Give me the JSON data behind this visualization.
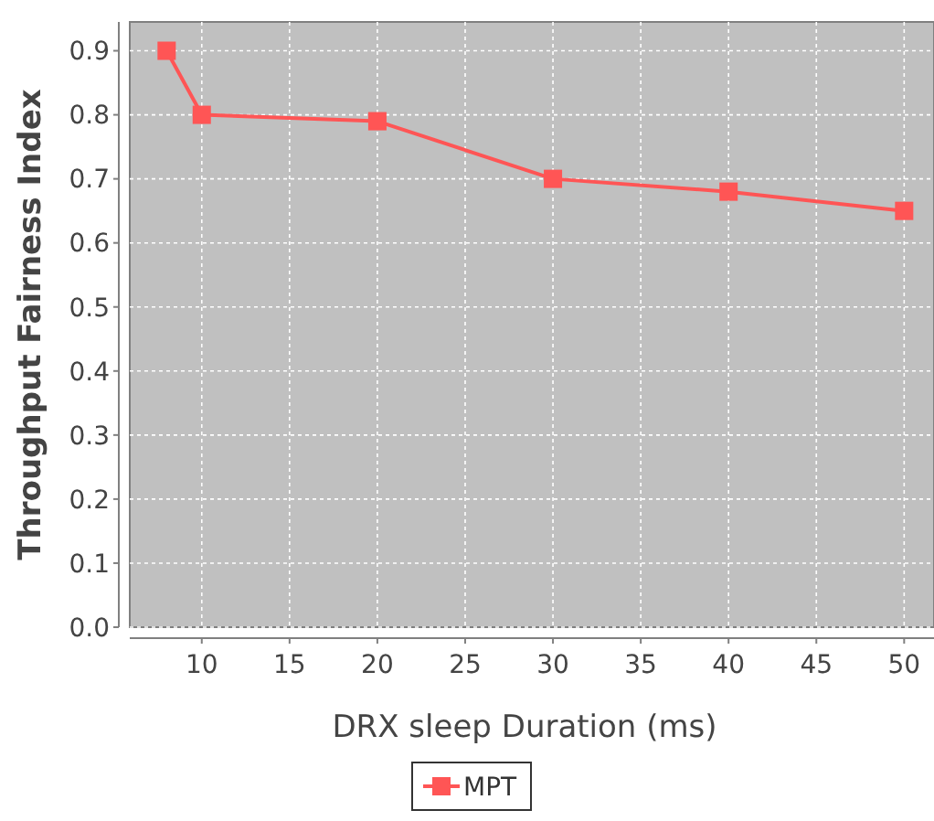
{
  "chart_data": {
    "type": "line",
    "xlabel": "DRX sleep Duration (ms)",
    "ylabel": "Throughput Fairness Index",
    "series": [
      {
        "name": "MPT",
        "color": "#ff5555",
        "x": [
          8,
          10,
          20,
          30,
          40,
          50
        ],
        "values": [
          0.9,
          0.8,
          0.79,
          0.7,
          0.68,
          0.65
        ]
      }
    ],
    "xlim": [
      5.9,
      51.7
    ],
    "xticks": [
      10,
      15,
      20,
      25,
      30,
      35,
      40,
      45,
      50
    ],
    "ylim": [
      0,
      0.945
    ],
    "yticks": [
      {
        "value": 0,
        "label": "0.0"
      },
      0.1,
      0.2,
      0.3,
      0.4,
      0.5,
      0.6,
      0.7,
      0.8,
      0.9
    ],
    "grid": true,
    "legend": "bottom",
    "marker": "square",
    "line_style": "solid"
  }
}
